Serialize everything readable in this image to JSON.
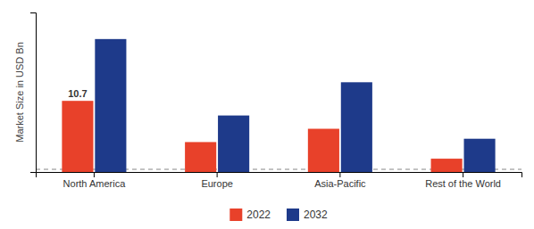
{
  "chart_data": {
    "type": "bar",
    "ylabel": "Market Size in USD Bn",
    "categories": [
      "North America",
      "Europe",
      "Asia-Pacific",
      "Rest of the World"
    ],
    "series": [
      {
        "name": "2022",
        "color": "#e8412a",
        "values": [
          10.7,
          4.5,
          6.5,
          2.0
        ]
      },
      {
        "name": "2032",
        "color": "#1e3a8a",
        "values": [
          20.0,
          8.5,
          13.5,
          5.0
        ]
      }
    ],
    "annotations": [
      {
        "text": "10.7",
        "category": "North America",
        "series": "2022",
        "y": 10.7
      }
    ],
    "reference_lines": [
      {
        "y": 0.4,
        "line_style": "dashed"
      }
    ],
    "ylim": [
      0,
      24
    ],
    "yticks": [],
    "tick_labels": "x",
    "grid": false,
    "legend": "bottom"
  }
}
